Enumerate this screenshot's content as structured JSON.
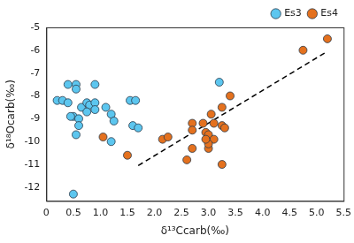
{
  "chart_data": {
    "type": "scatter",
    "x_label": "δ¹³Ccarb(‰)",
    "y_label": "δ¹⁸Ocarb(‰)",
    "xlim": [
      0,
      5.5
    ],
    "xticks": [
      0,
      0.5,
      {
        "value": 1,
        "label": "1.0"
      },
      1.5,
      {
        "value": 2,
        "label": "2.0"
      },
      2.5,
      {
        "value": 3,
        "label": "3.0"
      },
      3.5,
      {
        "value": 4,
        "label": "4.0"
      },
      4.5,
      {
        "value": 5,
        "label": "5.0"
      },
      5.5
    ],
    "ylim": [
      -12.6,
      -5
    ],
    "yticks": [
      -12,
      -11,
      -10,
      -9,
      -8,
      -7,
      -6,
      -5
    ],
    "grid": false,
    "legend": "upper right",
    "series": [
      {
        "name": "Es3",
        "color": "#5cc6ef",
        "marker": "circle",
        "x": [
          0.2,
          0.3,
          0.4,
          0.4,
          0.55,
          0.5,
          0.55,
          0.6,
          0.6,
          0.55,
          0.65,
          0.75,
          0.8,
          0.9,
          0.9,
          0.9,
          0.75,
          1.1,
          1.2,
          1.25,
          1.2,
          1.55,
          1.65,
          1.6,
          1.7,
          3.2,
          0.5,
          0.45
        ],
        "values": [
          -8.2,
          -8.2,
          -7.5,
          -8.3,
          -7.5,
          -8.9,
          -7.7,
          -9.0,
          -9.3,
          -9.7,
          -8.5,
          -8.3,
          -8.4,
          -7.5,
          -8.3,
          -8.6,
          -8.7,
          -8.5,
          -8.8,
          -9.1,
          -10.0,
          -8.2,
          -8.2,
          -9.3,
          -9.4,
          -7.4,
          -12.3,
          -8.9
        ]
      },
      {
        "name": "Es4",
        "color": "#e4711e",
        "marker": "circle",
        "x": [
          1.05,
          1.5,
          2.15,
          2.25,
          2.6,
          2.7,
          2.7,
          2.7,
          2.9,
          2.95,
          3.0,
          3.0,
          3.05,
          3.1,
          3.1,
          3.25,
          3.25,
          3.3,
          3.25,
          3.4,
          3.0,
          4.75,
          5.2,
          2.95
        ],
        "values": [
          -9.8,
          -10.6,
          -9.9,
          -9.8,
          -10.8,
          -9.2,
          -9.5,
          -10.3,
          -9.2,
          -9.6,
          -9.7,
          -10.3,
          -8.8,
          -9.2,
          -9.9,
          -8.5,
          -9.3,
          -9.4,
          -11.0,
          -8.0,
          -10.1,
          -6.0,
          -5.5,
          -9.9
        ]
      },
      {
        "type": "line",
        "color": "#000000",
        "line_style": "dashed",
        "x": [
          1.7,
          5.2
        ],
        "values": [
          -11.05,
          -6.05
        ]
      }
    ]
  }
}
